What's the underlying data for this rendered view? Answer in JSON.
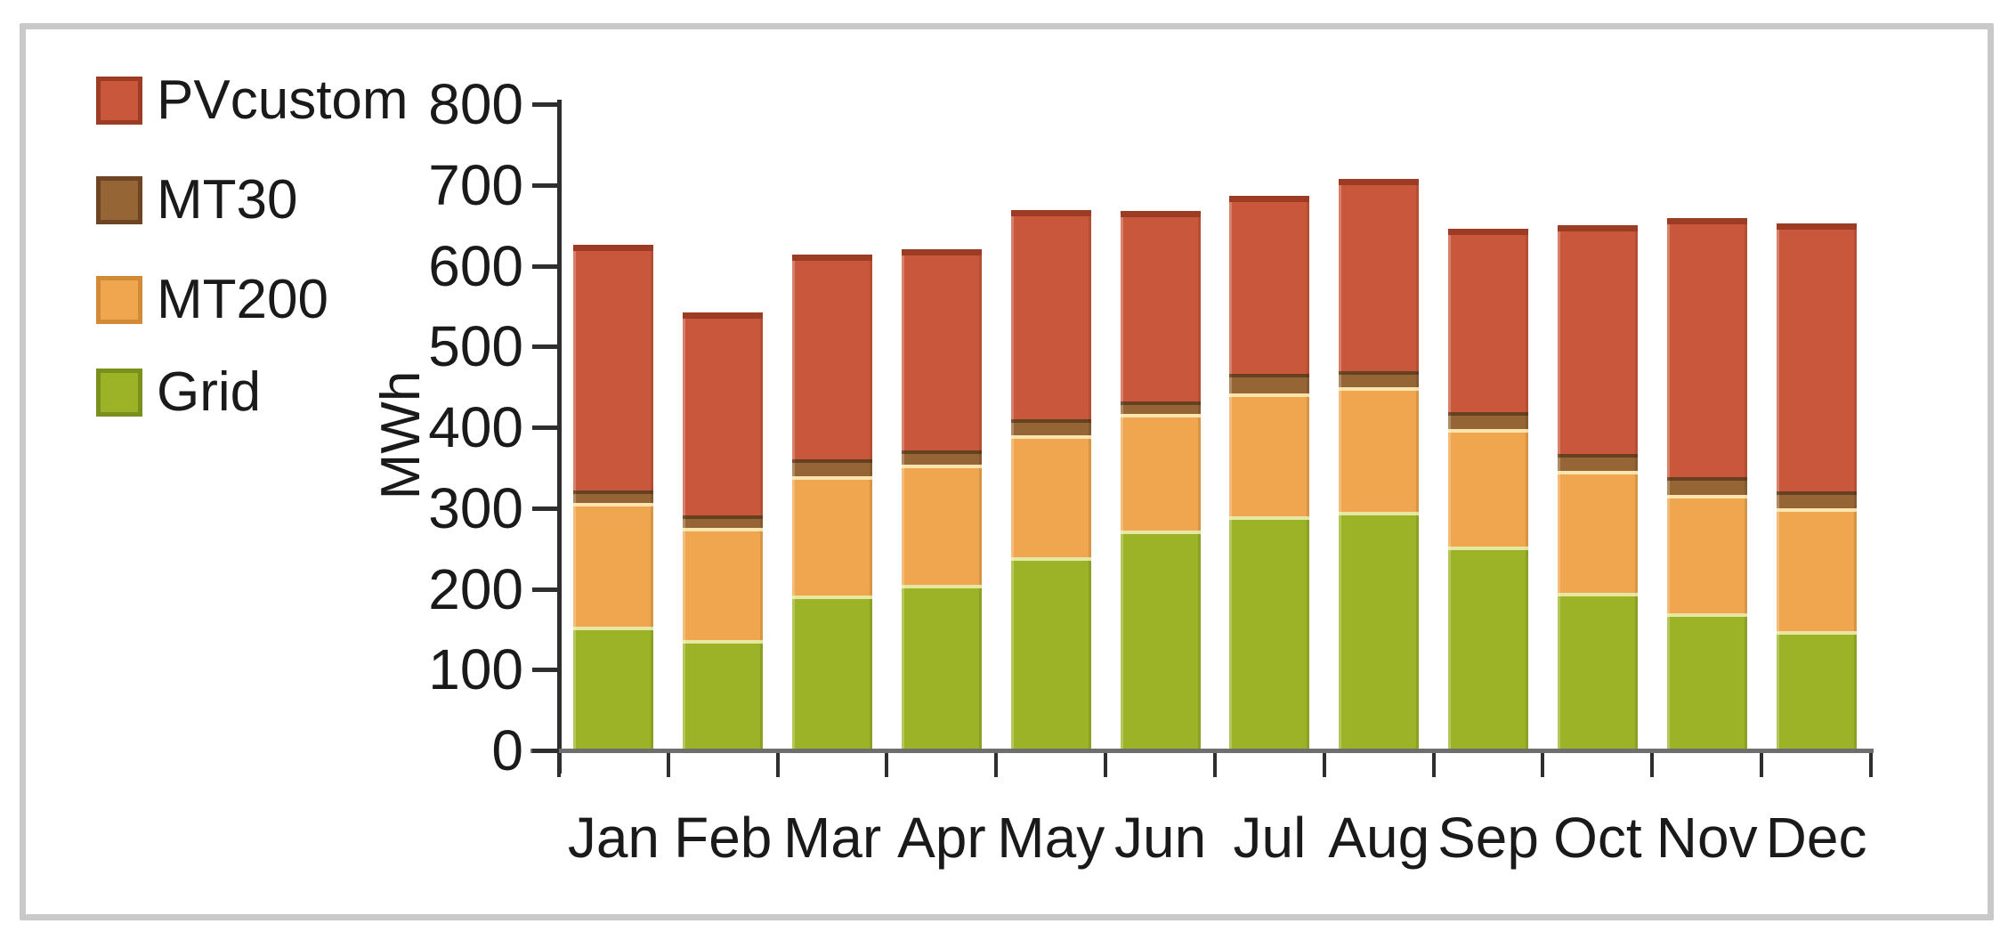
{
  "chart_data": {
    "type": "bar",
    "stacked": true,
    "title": "",
    "ylabel": "MWh",
    "xlabel": "",
    "ylim": [
      0,
      800
    ],
    "ytick_step": 100,
    "yticks": [
      0,
      100,
      200,
      300,
      400,
      500,
      600,
      700,
      800
    ],
    "grid": false,
    "legend_position": "top-left",
    "categories": [
      "Jan",
      "Feb",
      "Mar",
      "Apr",
      "May",
      "Jun",
      "Jul",
      "Aug",
      "Sep",
      "Oct",
      "Nov",
      "Dec"
    ],
    "series": [
      {
        "name": "Grid",
        "color": "#9cb327",
        "edge_color": "#79901b",
        "values": [
          151,
          134,
          190,
          203,
          237,
          270,
          288,
          293,
          250,
          193,
          168,
          145
        ]
      },
      {
        "name": "MT200",
        "color": "#f0a64e",
        "edge_color": "#d18a35",
        "values": [
          153,
          139,
          147,
          148,
          151,
          144,
          152,
          154,
          146,
          151,
          146,
          153
        ]
      },
      {
        "name": "MT30",
        "color": "#966536",
        "edge_color": "#6e4423",
        "values": [
          16,
          16,
          21,
          18,
          20,
          16,
          24,
          20,
          21,
          21,
          22,
          20
        ]
      },
      {
        "name": "PVcustom",
        "color": "#c9573b",
        "edge_color": "#9c3c25",
        "values": [
          304,
          251,
          254,
          249,
          259,
          236,
          220,
          238,
          226,
          283,
          321,
          332
        ]
      }
    ],
    "legend_order": [
      "PVcustom",
      "MT30",
      "MT200",
      "Grid"
    ],
    "totals": [
      624,
      540,
      612,
      618,
      667,
      666,
      684,
      705,
      643,
      648,
      657,
      650
    ]
  },
  "colors": {
    "frame": "#c9c9c9",
    "axis": "#2e2e2e",
    "baseline": "#6e6e6e",
    "text": "#1a1a1a",
    "background": "#ffffff"
  }
}
